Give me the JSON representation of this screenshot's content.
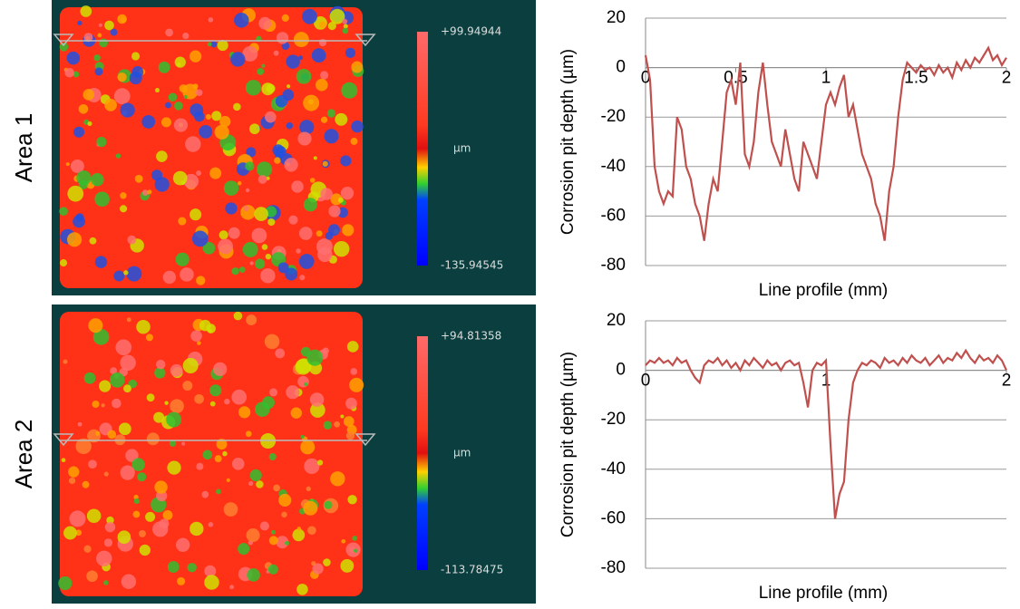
{
  "panels": [
    {
      "label": "Area 1",
      "colorbar_max": "+99.94944",
      "colorbar_unit": "µm",
      "colorbar_min": "-135.94545"
    },
    {
      "label": "Area 2",
      "colorbar_max": "+94.81358",
      "colorbar_unit": "µm",
      "colorbar_min": "-113.78475"
    }
  ],
  "chart_data": [
    {
      "type": "line",
      "y_label": "Corrosion pit depth (µm)",
      "x_label": "Line profile (mm)",
      "xlim": [
        0,
        2
      ],
      "xticks": [
        0,
        0.5,
        1,
        1.5,
        2
      ],
      "ylim": [
        -80,
        20
      ],
      "yticks": [
        -80,
        -60,
        -40,
        -20,
        0,
        20
      ],
      "grid": true,
      "color": "#c0504d",
      "x": [
        0,
        0.025,
        0.05,
        0.075,
        0.1,
        0.125,
        0.15,
        0.175,
        0.2,
        0.225,
        0.25,
        0.275,
        0.3,
        0.325,
        0.35,
        0.375,
        0.4,
        0.425,
        0.45,
        0.475,
        0.5,
        0.525,
        0.55,
        0.575,
        0.6,
        0.625,
        0.65,
        0.675,
        0.7,
        0.725,
        0.75,
        0.775,
        0.8,
        0.825,
        0.85,
        0.875,
        0.9,
        0.925,
        0.95,
        0.975,
        1,
        1.025,
        1.05,
        1.075,
        1.1,
        1.125,
        1.15,
        1.175,
        1.2,
        1.225,
        1.25,
        1.275,
        1.3,
        1.325,
        1.35,
        1.375,
        1.4,
        1.425,
        1.45,
        1.475,
        1.5,
        1.525,
        1.55,
        1.575,
        1.6,
        1.625,
        1.65,
        1.675,
        1.7,
        1.725,
        1.75,
        1.775,
        1.8,
        1.825,
        1.85,
        1.875,
        1.9,
        1.925,
        1.95,
        1.975,
        2
      ],
      "values": [
        5,
        -5,
        -40,
        -50,
        -55,
        -50,
        -52,
        -20,
        -25,
        -40,
        -45,
        -55,
        -60,
        -70,
        -55,
        -45,
        -50,
        -30,
        -10,
        -5,
        -15,
        2,
        -35,
        -40,
        -30,
        -10,
        2,
        -15,
        -30,
        -35,
        -40,
        -25,
        -35,
        -45,
        -50,
        -30,
        -35,
        -40,
        -45,
        -30,
        -15,
        -10,
        -15,
        -8,
        -3,
        -20,
        -15,
        -25,
        -35,
        -40,
        -45,
        -55,
        -60,
        -70,
        -50,
        -40,
        -20,
        -5,
        2,
        0,
        -2,
        1,
        -1,
        0,
        -3,
        1,
        -2,
        0,
        -4,
        2,
        -1,
        3,
        0,
        4,
        2,
        5,
        8,
        3,
        5,
        1,
        4
      ]
    },
    {
      "type": "line",
      "y_label": "Corrosion pit depth (µm)",
      "x_label": "Line profile (mm)",
      "xlim": [
        0,
        2
      ],
      "xticks": [
        0,
        1,
        2
      ],
      "ylim": [
        -80,
        20
      ],
      "yticks": [
        -80,
        -60,
        -40,
        -20,
        0,
        20
      ],
      "grid": true,
      "color": "#c0504d",
      "x": [
        0,
        0.025,
        0.05,
        0.075,
        0.1,
        0.125,
        0.15,
        0.175,
        0.2,
        0.225,
        0.25,
        0.275,
        0.3,
        0.325,
        0.35,
        0.375,
        0.4,
        0.425,
        0.45,
        0.475,
        0.5,
        0.525,
        0.55,
        0.575,
        0.6,
        0.625,
        0.65,
        0.675,
        0.7,
        0.725,
        0.75,
        0.775,
        0.8,
        0.825,
        0.85,
        0.875,
        0.9,
        0.925,
        0.95,
        0.975,
        1,
        1.025,
        1.05,
        1.075,
        1.1,
        1.125,
        1.15,
        1.175,
        1.2,
        1.225,
        1.25,
        1.275,
        1.3,
        1.325,
        1.35,
        1.375,
        1.4,
        1.425,
        1.45,
        1.475,
        1.5,
        1.525,
        1.55,
        1.575,
        1.6,
        1.625,
        1.65,
        1.675,
        1.7,
        1.725,
        1.75,
        1.775,
        1.8,
        1.825,
        1.85,
        1.875,
        1.9,
        1.925,
        1.95,
        1.975,
        2
      ],
      "values": [
        2,
        4,
        3,
        5,
        3,
        4,
        2,
        5,
        3,
        4,
        0,
        -3,
        -5,
        2,
        4,
        3,
        5,
        2,
        4,
        1,
        3,
        0,
        4,
        2,
        5,
        3,
        1,
        4,
        2,
        3,
        0,
        3,
        4,
        2,
        3,
        -5,
        -15,
        0,
        3,
        2,
        4,
        -30,
        -60,
        -50,
        -45,
        -20,
        -5,
        0,
        3,
        2,
        4,
        3,
        1,
        5,
        3,
        4,
        2,
        5,
        3,
        6,
        4,
        3,
        5,
        2,
        4,
        6,
        3,
        5,
        4,
        7,
        5,
        8,
        5,
        3,
        6,
        4,
        5,
        3,
        6,
        4,
        0
      ]
    }
  ]
}
